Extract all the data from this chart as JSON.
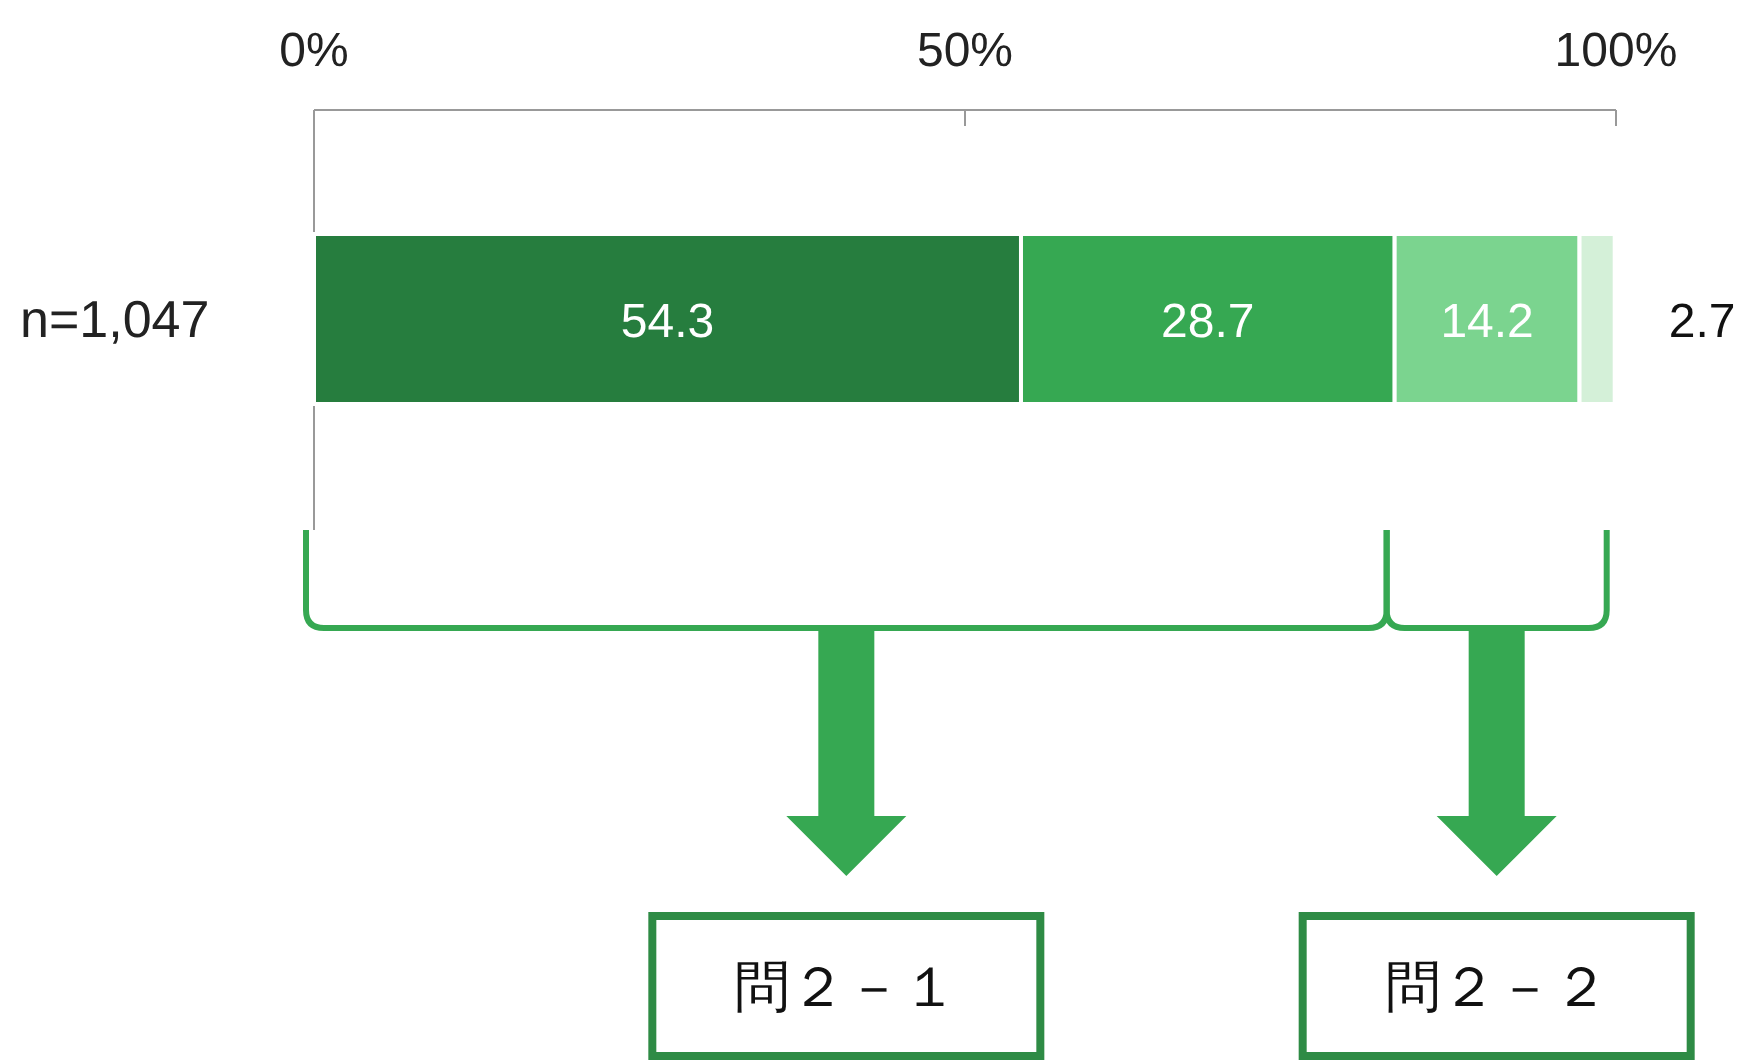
{
  "chart_data": {
    "type": "bar",
    "orientation": "horizontal",
    "stacked": true,
    "categories": [
      "n=1,047"
    ],
    "series": [
      {
        "color": "#267d3e",
        "values": [
          54.3
        ]
      },
      {
        "color": "#36a852",
        "values": [
          28.7
        ]
      },
      {
        "color": "#7bd48f",
        "values": [
          14.2
        ]
      },
      {
        "color": "#d4f0d8",
        "values": [
          2.7
        ]
      }
    ],
    "xlim": [
      0,
      100
    ],
    "xticks": [
      {
        "value": 0,
        "label": "0%"
      },
      {
        "value": 50,
        "label": "50%"
      },
      {
        "value": 100,
        "label": "100%"
      }
    ],
    "data_labels": true,
    "annotations": [
      "問２－１",
      "問２－２"
    ]
  }
}
